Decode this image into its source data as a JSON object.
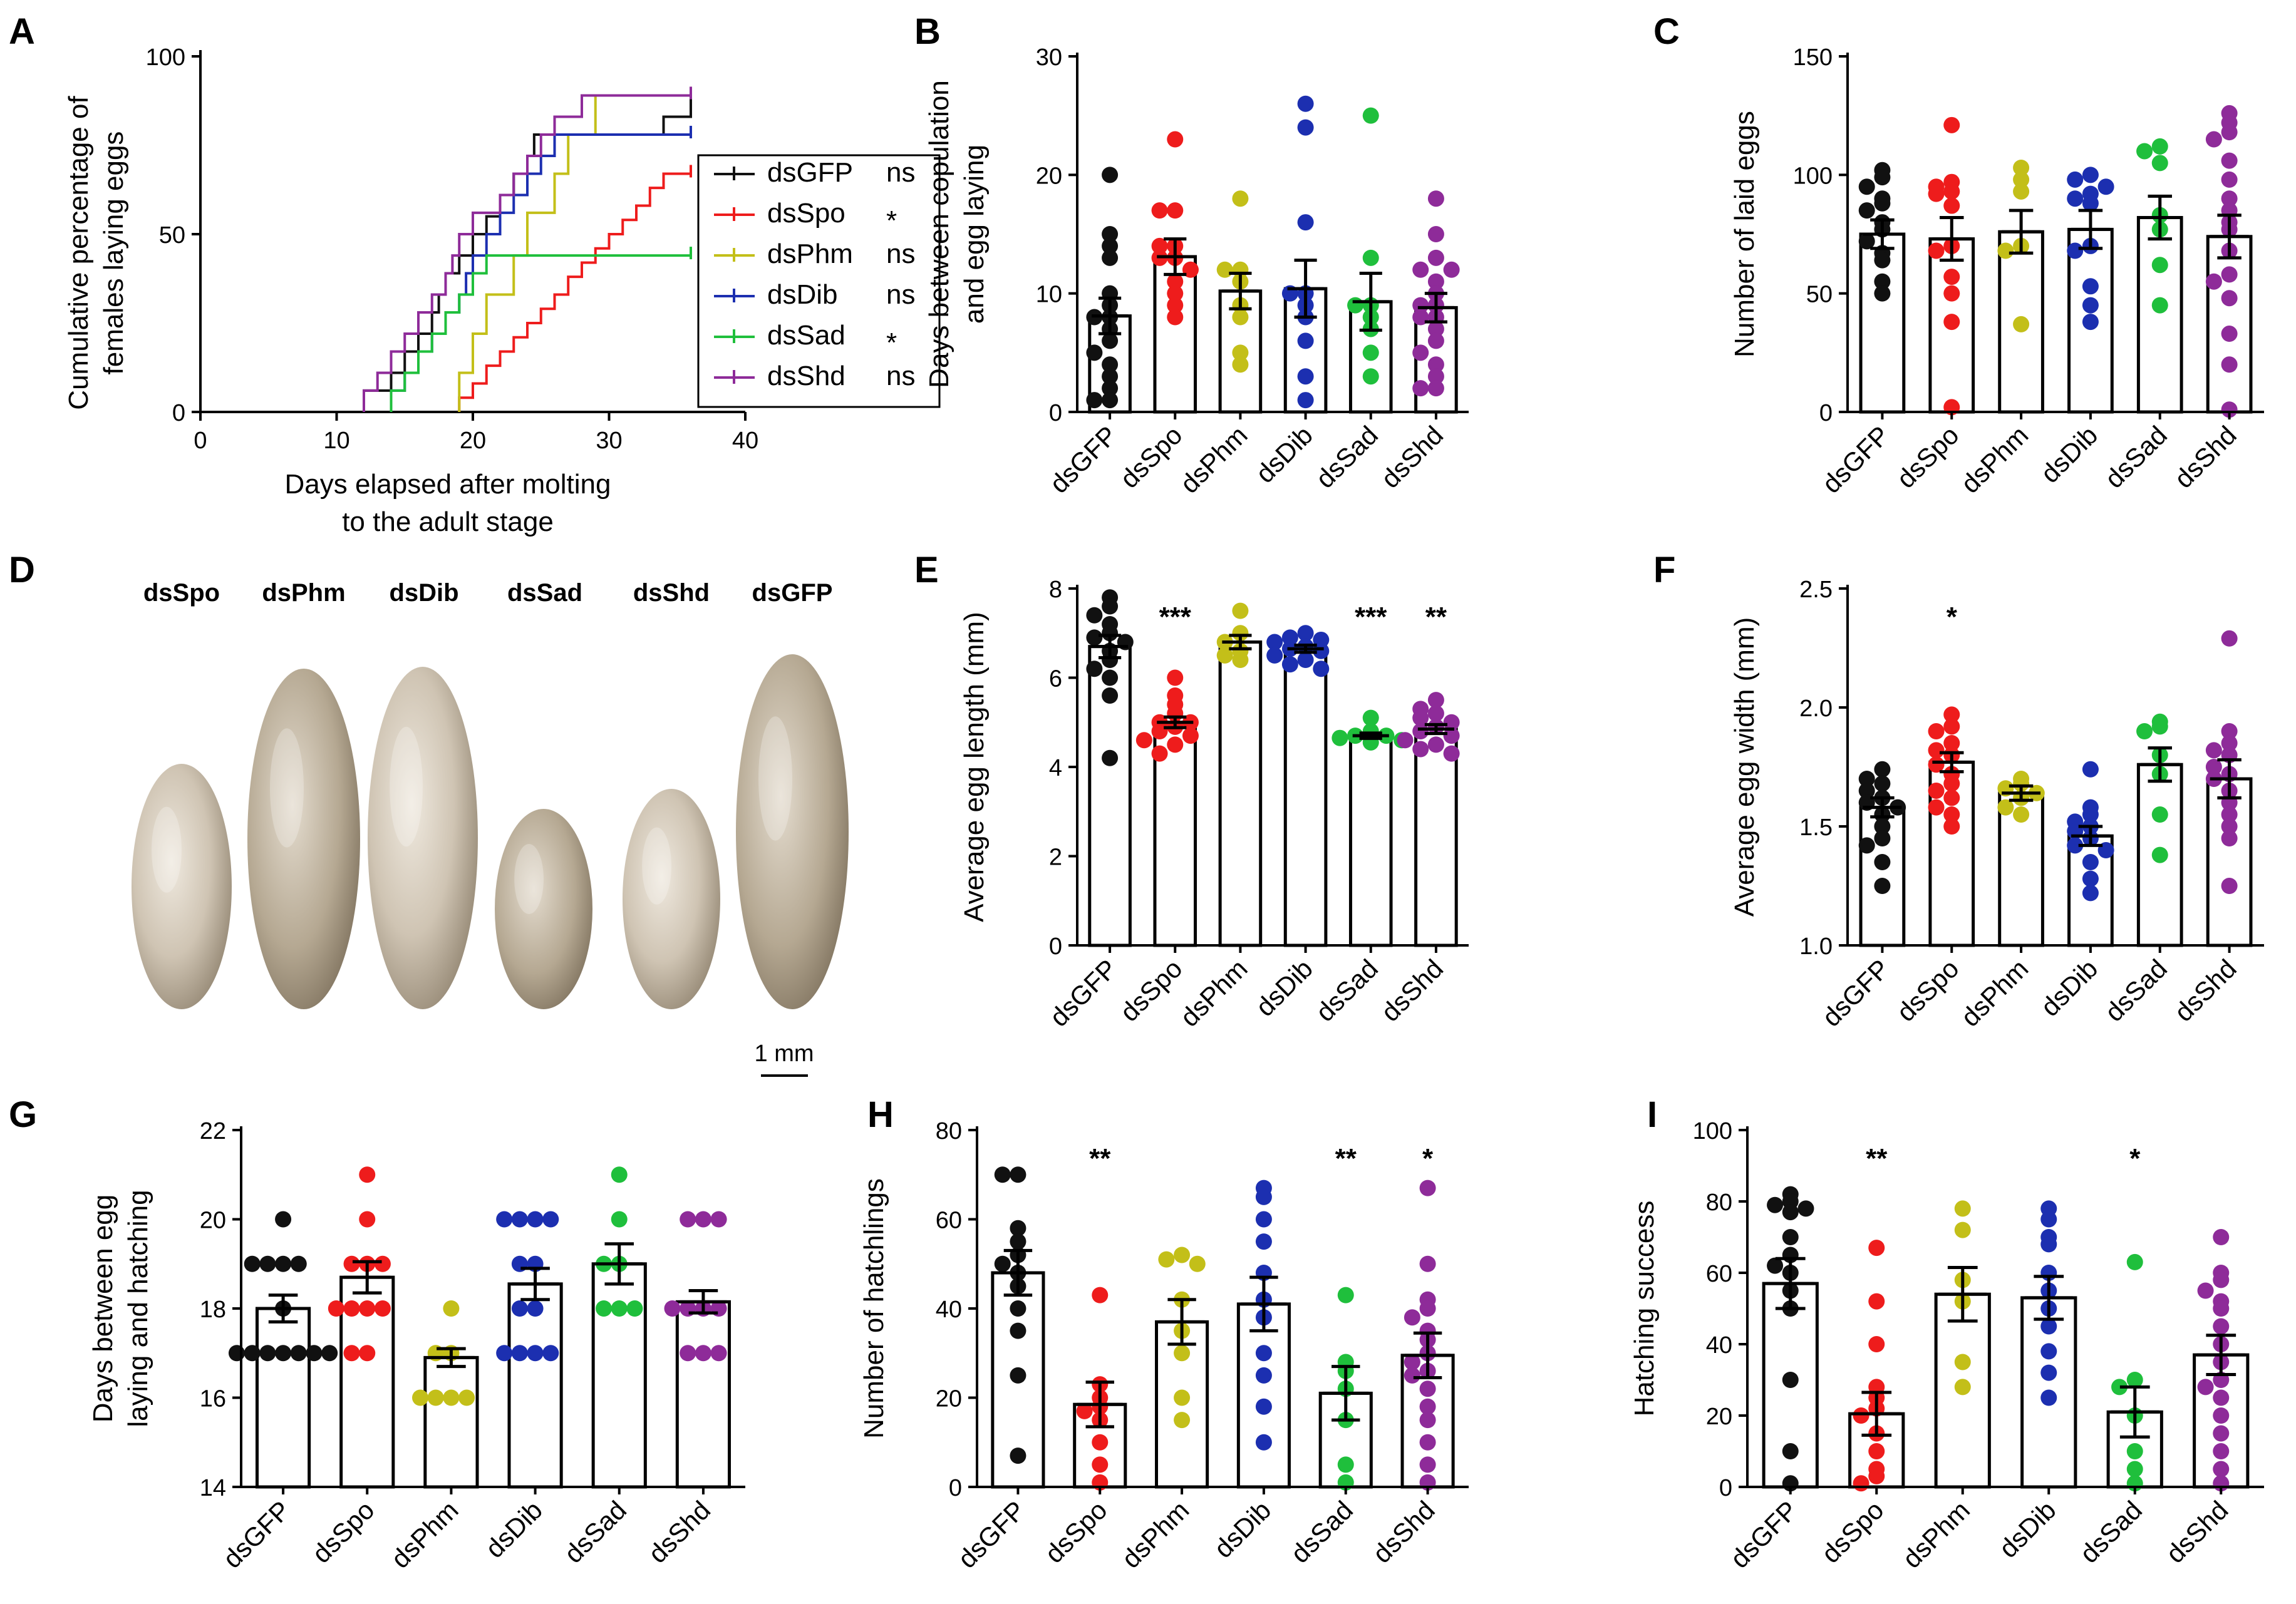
{
  "colors": {
    "dsGFP": "#111111",
    "dsSpo": "#ee1c1c",
    "dsPhm": "#c3bf19",
    "dsDib": "#1c2fb0",
    "dsSad": "#1fbf3c",
    "dsShd": "#8e2b99"
  },
  "groups": [
    "dsGFP",
    "dsSpo",
    "dsPhm",
    "dsDib",
    "dsSad",
    "dsShd"
  ],
  "photo": {
    "letter": "D",
    "labels": [
      "dsSpo",
      "dsPhm",
      "dsDib",
      "dsSad",
      "dsShd",
      "dsGFP"
    ],
    "scale": "1 mm"
  },
  "chart_data": [
    {
      "panel": "A",
      "type": "line",
      "xlabel": [
        "Days elapsed after molting",
        "to the adult stage"
      ],
      "ylabel": [
        "Cumulative percentage of",
        "females laying eggs"
      ],
      "xlim": [
        0,
        40
      ],
      "ylim": [
        0,
        100
      ],
      "xticks": [
        0,
        10,
        20,
        30,
        40
      ],
      "yticks": [
        0,
        50,
        100
      ],
      "legend": {
        "position": "right",
        "significance": [
          "ns",
          "*",
          "ns",
          "ns",
          "*",
          "ns"
        ]
      },
      "series": [
        {
          "name": "dsGFP",
          "steps": [
            [
              12,
              0
            ],
            [
              12,
              6
            ],
            [
              14,
              11
            ],
            [
              15,
              17
            ],
            [
              16,
              22
            ],
            [
              17,
              28
            ],
            [
              17.5,
              33
            ],
            [
              18,
              39
            ],
            [
              19,
              44
            ],
            [
              20,
              50
            ],
            [
              21,
              55
            ],
            [
              22,
              61
            ],
            [
              23,
              67
            ],
            [
              24,
              72
            ],
            [
              24.5,
              78
            ],
            [
              34,
              78
            ],
            [
              34,
              83
            ],
            [
              36,
              83
            ],
            [
              36,
              89
            ]
          ]
        },
        {
          "name": "dsSpo",
          "steps": [
            [
              19,
              0
            ],
            [
              19,
              4
            ],
            [
              20,
              8
            ],
            [
              21,
              13
            ],
            [
              22,
              17
            ],
            [
              23,
              21
            ],
            [
              24,
              25
            ],
            [
              25,
              29
            ],
            [
              26,
              33
            ],
            [
              27,
              38
            ],
            [
              28,
              42
            ],
            [
              29,
              46
            ],
            [
              30,
              50
            ],
            [
              31,
              54
            ],
            [
              32,
              58
            ],
            [
              33,
              63
            ],
            [
              34,
              67
            ],
            [
              36,
              67
            ]
          ]
        },
        {
          "name": "dsPhm",
          "steps": [
            [
              19,
              0
            ],
            [
              19,
              11
            ],
            [
              20,
              22
            ],
            [
              21,
              33
            ],
            [
              23,
              44
            ],
            [
              24,
              56
            ],
            [
              26,
              67
            ],
            [
              27,
              78
            ],
            [
              29,
              89
            ],
            [
              36,
              89
            ]
          ]
        },
        {
          "name": "dsDib",
          "steps": [
            [
              14,
              0
            ],
            [
              14,
              6
            ],
            [
              15,
              11
            ],
            [
              16,
              17
            ],
            [
              17,
              22
            ],
            [
              18,
              28
            ],
            [
              19,
              33
            ],
            [
              19.5,
              39
            ],
            [
              20,
              44
            ],
            [
              21,
              50
            ],
            [
              22,
              56
            ],
            [
              23,
              61
            ],
            [
              24,
              67
            ],
            [
              25,
              72
            ],
            [
              26,
              78
            ],
            [
              36,
              78
            ]
          ]
        },
        {
          "name": "dsSad",
          "steps": [
            [
              14,
              0
            ],
            [
              14,
              6
            ],
            [
              15,
              11
            ],
            [
              16,
              17
            ],
            [
              17,
              22
            ],
            [
              18,
              28
            ],
            [
              19,
              33
            ],
            [
              20,
              39
            ],
            [
              21,
              44
            ],
            [
              36,
              44
            ]
          ]
        },
        {
          "name": "dsShd",
          "steps": [
            [
              12,
              0
            ],
            [
              12,
              6
            ],
            [
              13,
              11
            ],
            [
              14,
              17
            ],
            [
              15,
              22
            ],
            [
              16,
              28
            ],
            [
              17,
              33
            ],
            [
              18,
              39
            ],
            [
              18.5,
              44
            ],
            [
              19,
              50
            ],
            [
              20,
              56
            ],
            [
              22,
              61
            ],
            [
              23,
              67
            ],
            [
              24,
              72
            ],
            [
              25,
              78
            ],
            [
              26,
              83
            ],
            [
              28,
              89
            ],
            [
              36,
              89
            ]
          ]
        }
      ]
    },
    {
      "panel": "B",
      "type": "bar",
      "ylabel": [
        "Days between copulation",
        "and egg laying"
      ],
      "ylim": [
        0,
        30
      ],
      "yticks": [
        0,
        10,
        20,
        30
      ],
      "categories": [
        "dsGFP",
        "dsSpo",
        "dsPhm",
        "dsDib",
        "dsSad",
        "dsShd"
      ],
      "means": [
        8.1,
        13.1,
        10.2,
        10.4,
        9.3,
        8.8
      ],
      "sem": [
        1.5,
        1.5,
        1.5,
        2.4,
        2.4,
        1.2
      ],
      "points": [
        [
          20,
          15,
          14,
          13,
          10,
          9,
          8,
          8,
          7,
          6,
          5,
          4,
          3,
          2,
          1,
          1
        ],
        [
          23,
          17,
          17,
          14,
          14,
          13,
          13,
          12,
          11,
          10,
          9,
          8
        ],
        [
          18,
          12,
          12,
          11,
          9,
          8,
          5,
          4
        ],
        [
          26,
          24,
          16,
          10,
          10,
          9,
          8,
          6,
          3,
          1
        ],
        [
          25,
          13,
          9,
          9,
          8,
          7,
          5,
          3
        ],
        [
          18,
          15,
          13,
          12,
          12,
          11,
          10,
          9,
          9,
          8,
          8,
          7,
          6,
          5,
          4,
          3,
          2,
          2
        ]
      ],
      "significance": [
        "",
        "",
        "",
        "",
        "",
        ""
      ]
    },
    {
      "panel": "C",
      "type": "bar",
      "ylabel": [
        "Number of laid eggs"
      ],
      "ylim": [
        0,
        150
      ],
      "yticks": [
        0,
        50,
        100,
        150
      ],
      "categories": [
        "dsGFP",
        "dsSpo",
        "dsPhm",
        "dsDib",
        "dsSad",
        "dsShd"
      ],
      "means": [
        75,
        73,
        76,
        77,
        82,
        74
      ],
      "sem": [
        6,
        9,
        9,
        8,
        9,
        9
      ],
      "points": [
        [
          102,
          99,
          95,
          90,
          88,
          85,
          80,
          77,
          72,
          67,
          64,
          55,
          50
        ],
        [
          121,
          97,
          95,
          93,
          92,
          87,
          70,
          68,
          57,
          50,
          38,
          2
        ],
        [
          103,
          98,
          93,
          70,
          68,
          37
        ],
        [
          100,
          98,
          95,
          92,
          90,
          88,
          70,
          68,
          53,
          45,
          38
        ],
        [
          112,
          110,
          105,
          83,
          77,
          62,
          45
        ],
        [
          126,
          122,
          118,
          115,
          106,
          98,
          90,
          85,
          80,
          77,
          68,
          58,
          55,
          48,
          33,
          20,
          1
        ]
      ],
      "significance": [
        "",
        "",
        "",
        "",
        "",
        ""
      ]
    },
    {
      "panel": "E",
      "type": "bar",
      "ylabel": [
        "Average egg length (mm)"
      ],
      "ylim": [
        0,
        8
      ],
      "yticks": [
        0,
        2,
        4,
        6,
        8
      ],
      "categories": [
        "dsGFP",
        "dsSpo",
        "dsPhm",
        "dsDib",
        "dsSad",
        "dsShd"
      ],
      "means": [
        6.7,
        5.0,
        6.8,
        6.65,
        4.7,
        4.85
      ],
      "sem": [
        0.25,
        0.12,
        0.15,
        0.08,
        0.06,
        0.1
      ],
      "points": [
        [
          7.8,
          7.6,
          7.4,
          7.2,
          7.0,
          6.9,
          6.8,
          6.6,
          6.4,
          6.2,
          6.0,
          5.6,
          4.2
        ],
        [
          6.0,
          5.6,
          5.4,
          5.2,
          5.0,
          5.0,
          4.9,
          4.8,
          4.7,
          4.6,
          4.5,
          4.3
        ],
        [
          7.5,
          7.0,
          6.8,
          6.6,
          6.5,
          6.4
        ],
        [
          7.0,
          6.9,
          6.85,
          6.8,
          6.7,
          6.65,
          6.6,
          6.5,
          6.4,
          6.3,
          6.2
        ],
        [
          5.1,
          4.8,
          4.7,
          4.7,
          4.65,
          4.6,
          4.55
        ],
        [
          5.5,
          5.3,
          5.2,
          5.1,
          5.0,
          4.9,
          4.8,
          4.7,
          4.6,
          4.5,
          4.4,
          4.3
        ]
      ],
      "significance": [
        "",
        "***",
        "",
        "",
        "***",
        "**"
      ]
    },
    {
      "panel": "F",
      "type": "bar",
      "ylabel": [
        "Average egg width (mm)"
      ],
      "ylim": [
        1.0,
        2.5
      ],
      "yticks": [
        1.0,
        1.5,
        2.0,
        2.5
      ],
      "categories": [
        "dsGFP",
        "dsSpo",
        "dsPhm",
        "dsDib",
        "dsSad",
        "dsShd"
      ],
      "means": [
        1.58,
        1.77,
        1.64,
        1.46,
        1.76,
        1.7
      ],
      "sem": [
        0.04,
        0.04,
        0.03,
        0.04,
        0.07,
        0.08
      ],
      "points": [
        [
          1.74,
          1.7,
          1.68,
          1.65,
          1.62,
          1.6,
          1.58,
          1.55,
          1.5,
          1.45,
          1.42,
          1.35,
          1.25
        ],
        [
          1.97,
          1.92,
          1.9,
          1.85,
          1.82,
          1.8,
          1.76,
          1.72,
          1.68,
          1.65,
          1.62,
          1.58,
          1.55,
          1.5
        ],
        [
          1.7,
          1.68,
          1.66,
          1.64,
          1.62,
          1.58,
          1.55
        ],
        [
          1.74,
          1.58,
          1.55,
          1.52,
          1.5,
          1.48,
          1.45,
          1.42,
          1.4,
          1.35,
          1.28,
          1.22
        ],
        [
          1.94,
          1.92,
          1.9,
          1.8,
          1.72,
          1.55,
          1.38
        ],
        [
          2.29,
          1.9,
          1.85,
          1.82,
          1.8,
          1.75,
          1.72,
          1.7,
          1.65,
          1.6,
          1.55,
          1.5,
          1.45,
          1.25
        ]
      ],
      "significance": [
        "",
        "*",
        "",
        "",
        "",
        ""
      ]
    },
    {
      "panel": "G",
      "type": "bar",
      "ylabel": [
        "Days between egg",
        "laying and hatching"
      ],
      "ylim": [
        14,
        22
      ],
      "yticks": [
        14,
        16,
        18,
        20,
        22
      ],
      "categories": [
        "dsGFP",
        "dsSpo",
        "dsPhm",
        "dsDib",
        "dsSad",
        "dsShd"
      ],
      "means": [
        18.0,
        18.7,
        16.9,
        18.55,
        19.0,
        18.15
      ],
      "sem": [
        0.3,
        0.35,
        0.2,
        0.35,
        0.45,
        0.25
      ],
      "points": [
        [
          20,
          19,
          19,
          19,
          19,
          18,
          17,
          17,
          17,
          17,
          17,
          17,
          17
        ],
        [
          21,
          20,
          19,
          19,
          19,
          18,
          18,
          18,
          18,
          17,
          17
        ],
        [
          18,
          17,
          17,
          16,
          16,
          16,
          16
        ],
        [
          20,
          20,
          20,
          20,
          19,
          19,
          18,
          18,
          17,
          17,
          17,
          17
        ],
        [
          21,
          20,
          19,
          19,
          18,
          18,
          18
        ],
        [
          20,
          20,
          20,
          18,
          18,
          18,
          18,
          17,
          17,
          17
        ]
      ],
      "significance": [
        "",
        "",
        "",
        "",
        "",
        ""
      ]
    },
    {
      "panel": "H",
      "type": "bar",
      "ylabel": [
        "Number of hatchlings"
      ],
      "ylim": [
        0,
        80
      ],
      "yticks": [
        0,
        20,
        40,
        60,
        80
      ],
      "categories": [
        "dsGFP",
        "dsSpo",
        "dsPhm",
        "dsDib",
        "dsSad",
        "dsShd"
      ],
      "means": [
        48,
        18.5,
        37,
        41,
        21,
        29.5
      ],
      "sem": [
        5,
        5,
        5,
        6,
        6,
        5
      ],
      "points": [
        [
          70,
          70,
          58,
          55,
          52,
          50,
          48,
          45,
          40,
          35,
          25,
          7
        ],
        [
          43,
          23,
          20,
          18,
          17,
          15,
          10,
          5,
          1
        ],
        [
          52,
          51,
          50,
          42,
          35,
          30,
          20,
          15
        ],
        [
          67,
          65,
          60,
          55,
          48,
          42,
          38,
          30,
          25,
          18,
          10
        ],
        [
          43,
          28,
          26,
          22,
          15,
          5,
          1
        ],
        [
          67,
          50,
          42,
          40,
          38,
          35,
          33,
          30,
          28,
          26,
          25,
          22,
          18,
          15,
          10,
          5,
          1
        ]
      ],
      "significance": [
        "",
        "**",
        "",
        "",
        "**",
        "*"
      ]
    },
    {
      "panel": "I",
      "type": "bar",
      "ylabel": [
        "Hatching success"
      ],
      "ylim": [
        0,
        100
      ],
      "yticks": [
        0,
        20,
        40,
        60,
        80,
        100
      ],
      "categories": [
        "dsGFP",
        "dsSpo",
        "dsPhm",
        "dsDib",
        "dsSad",
        "dsShd"
      ],
      "means": [
        57,
        20.5,
        54,
        53,
        21,
        37
      ],
      "sem": [
        7,
        6,
        7.5,
        6,
        7,
        5.5
      ],
      "points": [
        [
          82,
          80,
          79,
          78,
          77,
          70,
          65,
          62,
          60,
          55,
          50,
          30,
          10,
          1
        ],
        [
          67,
          52,
          40,
          28,
          25,
          22,
          20,
          15,
          10,
          5,
          3,
          1
        ],
        [
          78,
          72,
          58,
          52,
          35,
          28
        ],
        [
          78,
          75,
          70,
          68,
          60,
          55,
          50,
          45,
          38,
          32,
          25
        ],
        [
          63,
          30,
          28,
          20,
          10,
          5,
          1
        ],
        [
          70,
          60,
          58,
          55,
          52,
          50,
          45,
          40,
          35,
          30,
          28,
          25,
          20,
          15,
          10,
          5,
          1
        ]
      ],
      "significance": [
        "",
        "**",
        "",
        "",
        "*",
        ""
      ]
    }
  ]
}
